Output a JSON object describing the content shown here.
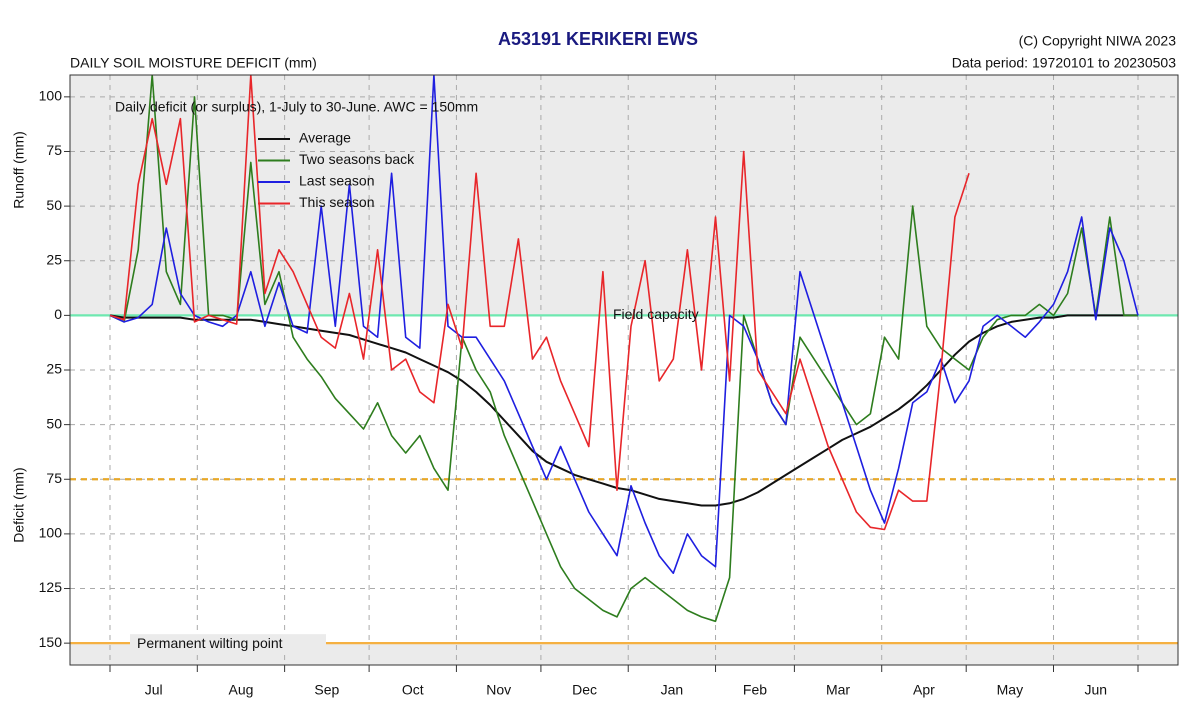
{
  "chart_data": {
    "type": "line",
    "title": "A53191  KERIKERI EWS",
    "subtitle": "DAILY SOIL MOISTURE DEFICIT (mm)",
    "copyright": "(C) Copyright NIWA  2023",
    "data_period": "Data period:  19720101  to  20230503",
    "annotation": "Daily deficit (or surplus), 1-July to 30-June.  AWC = 150mm",
    "ylabel_top": "Runoff (mm)",
    "ylabel_bottom": "Deficit (mm)",
    "months": [
      "Jul",
      "Aug",
      "Sep",
      "Oct",
      "Nov",
      "Dec",
      "Jan",
      "Feb",
      "Mar",
      "Apr",
      "May",
      "Jun"
    ],
    "month_starts": [
      0,
      31,
      62,
      92,
      123,
      153,
      184,
      215,
      243,
      274,
      304,
      335,
      365
    ],
    "xlim": [
      -14.2,
      379.2
    ],
    "ylim": [
      -160,
      110
    ],
    "yticks": [
      100,
      75,
      50,
      25,
      0,
      {
        "value": -25,
        "label": "25"
      },
      {
        "value": -50,
        "label": "50"
      },
      {
        "value": -75,
        "label": "75"
      },
      {
        "value": -100,
        "label": "100"
      },
      {
        "value": -125,
        "label": "125"
      },
      {
        "value": -150,
        "label": "150"
      }
    ],
    "grid": true,
    "reference_lines": [
      {
        "value": 0,
        "label": "Field capacity",
        "color": "#6ee8b0"
      },
      {
        "value": -75,
        "color": "#e8a828",
        "style": "dashed"
      },
      {
        "value": -150,
        "label": "Permanent wilting point",
        "color": "#f5b041"
      }
    ],
    "x": [
      0,
      5,
      10,
      15,
      20,
      25,
      30,
      35,
      40,
      45,
      50,
      55,
      60,
      65,
      70,
      75,
      80,
      85,
      90,
      95,
      100,
      105,
      110,
      115,
      120,
      125,
      130,
      135,
      140,
      145,
      150,
      155,
      160,
      165,
      170,
      175,
      180,
      185,
      190,
      195,
      200,
      205,
      210,
      215,
      220,
      225,
      230,
      235,
      240,
      245,
      250,
      255,
      260,
      265,
      270,
      275,
      280,
      285,
      290,
      295,
      300,
      305,
      310,
      315,
      320,
      325,
      330,
      335,
      340,
      345,
      350,
      355,
      360,
      365
    ],
    "series": [
      {
        "name": "Average",
        "color": "#111111",
        "values": [
          0,
          -1,
          -1,
          -1,
          -1,
          -1,
          -2,
          -2,
          -2,
          -2,
          -2,
          -3,
          -4,
          -5,
          -6,
          -7,
          -8,
          -9,
          -11,
          -13,
          -15,
          -17,
          -20,
          -23,
          -26,
          -30,
          -35,
          -41,
          -48,
          -55,
          -62,
          -67,
          -70,
          -73,
          -75,
          -77,
          -79,
          -80,
          -82,
          -84,
          -85,
          -86,
          -87,
          -87,
          -86,
          -84,
          -81,
          -77,
          -73,
          -69,
          -65,
          -61,
          -57,
          -54,
          -51,
          -47,
          -43,
          -38,
          -32,
          -25,
          -18,
          -12,
          -8,
          -5,
          -3,
          -2,
          -1,
          -1,
          0,
          0,
          0,
          0,
          0,
          0
        ]
      },
      {
        "name": "Two seasons back",
        "color": "#2e7d1e",
        "values": [
          0,
          -3,
          30,
          110,
          20,
          5,
          100,
          0,
          0,
          -2,
          70,
          5,
          20,
          -10,
          -20,
          -28,
          -38,
          -45,
          -52,
          -40,
          -55,
          -63,
          -55,
          -70,
          -80,
          -10,
          -25,
          -35,
          -55,
          -70,
          -85,
          -100,
          -115,
          -125,
          -130,
          -135,
          -138,
          -125,
          -120,
          -125,
          -130,
          -135,
          -138,
          -140,
          -120,
          0,
          -20,
          -40,
          -50,
          -10,
          -20,
          -30,
          -40,
          -50,
          -45,
          -10,
          -20,
          50,
          -5,
          -15,
          -20,
          -25,
          -10,
          -2,
          0,
          0,
          5,
          0,
          10,
          40,
          0,
          45,
          0,
          0
        ]
      },
      {
        "name": "Last season",
        "color": "#1f1fe0",
        "values": [
          0,
          -3,
          -1,
          5,
          40,
          10,
          0,
          -3,
          -5,
          0,
          20,
          -5,
          15,
          -5,
          -8,
          50,
          -5,
          60,
          -5,
          -10,
          65,
          -10,
          -15,
          110,
          -5,
          -10,
          -10,
          -20,
          -30,
          -45,
          -60,
          -75,
          -60,
          -75,
          -90,
          -100,
          -110,
          -78,
          -95,
          -110,
          -118,
          -100,
          -110,
          -115,
          0,
          -5,
          -20,
          -40,
          -50,
          20,
          0,
          -20,
          -40,
          -60,
          -80,
          -95,
          -70,
          -40,
          -35,
          -20,
          -40,
          -30,
          -5,
          0,
          -5,
          -10,
          -3,
          5,
          20,
          45,
          -2,
          40,
          25,
          0
        ]
      },
      {
        "name": "This season",
        "color": "#e8262a",
        "values": [
          0,
          -2,
          60,
          90,
          60,
          90,
          -3,
          0,
          -2,
          -4,
          110,
          10,
          30,
          20,
          5,
          -10,
          -15,
          10,
          -20,
          30,
          -25,
          -20,
          -35,
          -40,
          5,
          -15,
          65,
          -5,
          -5,
          35,
          -20,
          -10,
          -30,
          -45,
          -60,
          20,
          -80,
          -5,
          25,
          -30,
          -20,
          30,
          -25,
          45,
          -30,
          75,
          -25,
          -35,
          -45,
          -20,
          -40,
          -60,
          -75,
          -90,
          -97,
          -98,
          -80,
          -85,
          -85,
          -25,
          45,
          65,
          null,
          null,
          null,
          null,
          null,
          null,
          null,
          null,
          null,
          null,
          null,
          null
        ]
      }
    ]
  }
}
